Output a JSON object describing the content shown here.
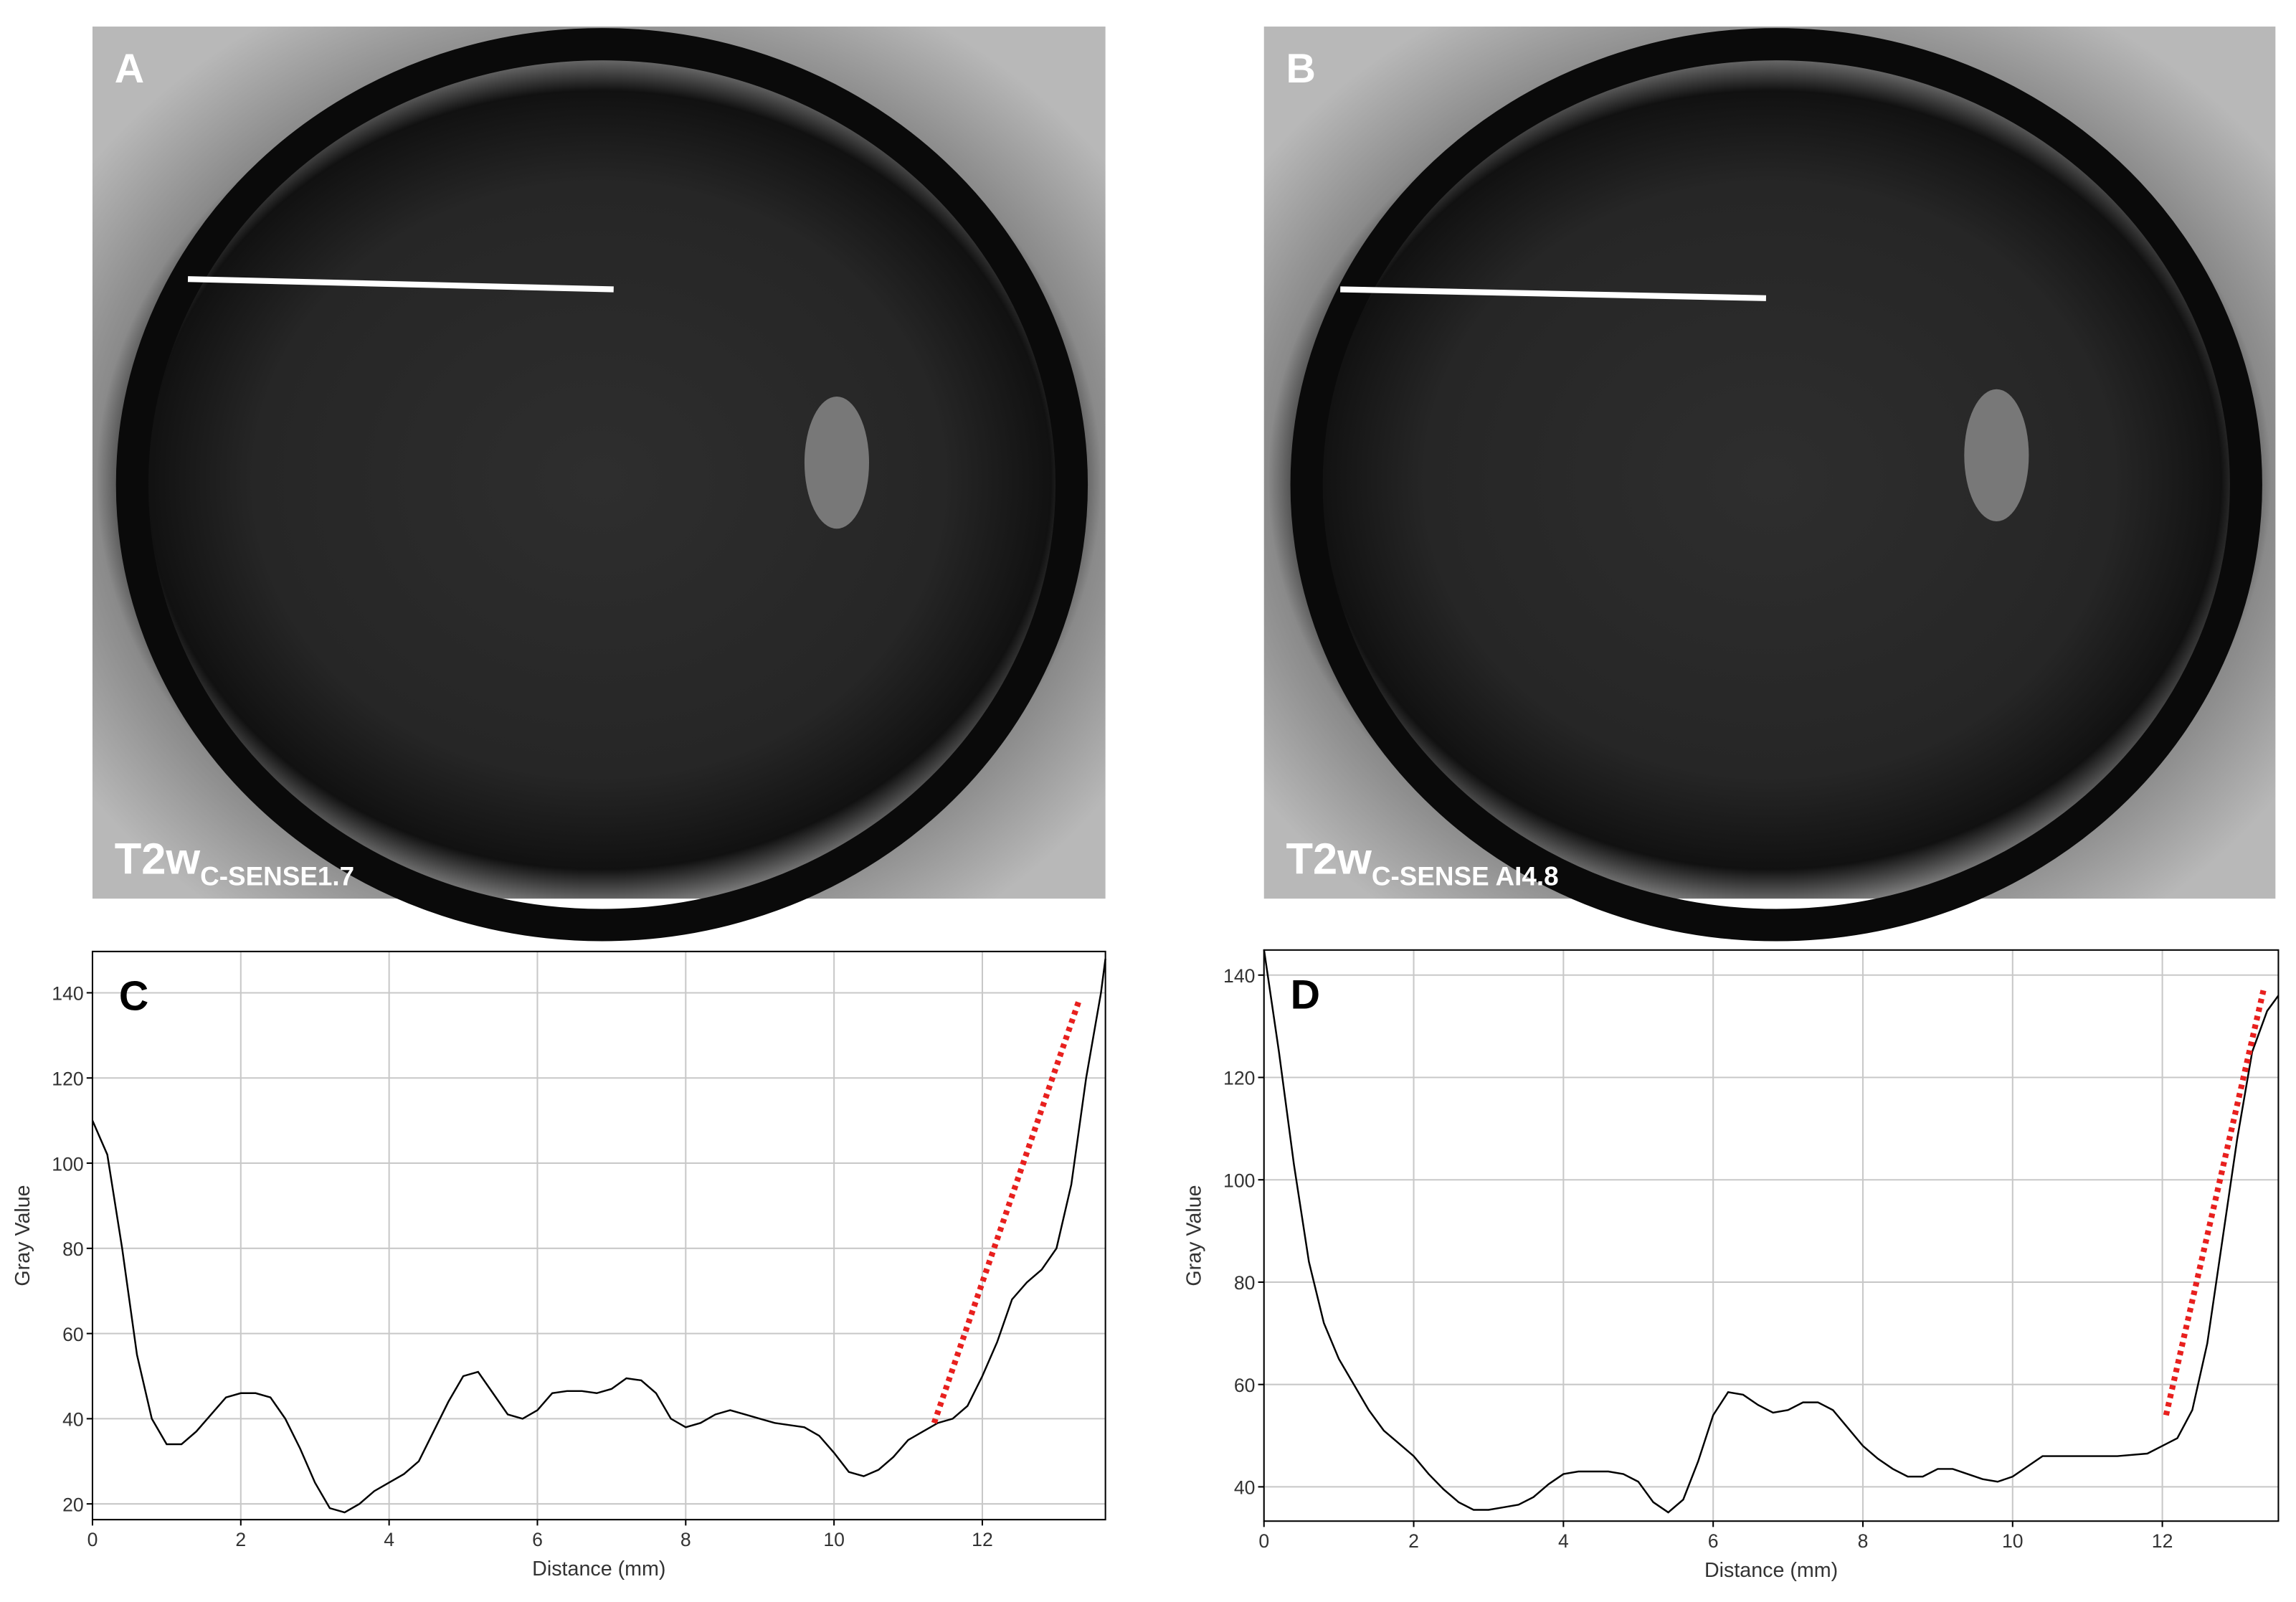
{
  "images": [
    {
      "label": "A",
      "caption": "T2w",
      "caption_sub": "C-SENSE1.7"
    },
    {
      "label": "B",
      "caption": "T2w",
      "caption_sub": "C-SENSE AI4.8"
    }
  ],
  "chart_data": [
    {
      "type": "line",
      "annotation": "C",
      "xlabel": "Distance (mm)",
      "ylabel": "Gray Value",
      "xlim": [
        0,
        13.66
      ],
      "ylim": [
        16.3,
        149.7
      ],
      "xticks": [
        0,
        2,
        4,
        6,
        8,
        10,
        12
      ],
      "yticks": [
        20,
        40,
        60,
        80,
        100,
        120,
        140
      ],
      "grid": true,
      "x": [
        0,
        0.2,
        0.4,
        0.6,
        0.8,
        1.0,
        1.2,
        1.4,
        1.6,
        1.8,
        2.0,
        2.2,
        2.4,
        2.6,
        2.8,
        3.0,
        3.2,
        3.4,
        3.6,
        3.8,
        4.0,
        4.2,
        4.4,
        4.6,
        4.8,
        5.0,
        5.2,
        5.4,
        5.6,
        5.8,
        6.0,
        6.2,
        6.4,
        6.6,
        6.8,
        7.0,
        7.2,
        7.4,
        7.6,
        7.8,
        8.0,
        8.2,
        8.4,
        8.6,
        8.8,
        9.0,
        9.2,
        9.4,
        9.6,
        9.8,
        10.0,
        10.2,
        10.4,
        10.6,
        10.8,
        11.0,
        11.2,
        11.4,
        11.6,
        11.8,
        12.0,
        12.2,
        12.4,
        12.6,
        12.8,
        13.0,
        13.2,
        13.4,
        13.6,
        13.66
      ],
      "series": [
        {
          "color": "#000000",
          "values": [
            110,
            102,
            80,
            55,
            40,
            34,
            34,
            37,
            41,
            45,
            46,
            46,
            45,
            40,
            33,
            25,
            19,
            18,
            20,
            23,
            25,
            27,
            30,
            37,
            44,
            50,
            51,
            46,
            41,
            40,
            42,
            46,
            46.5,
            46.5,
            46,
            47,
            49.5,
            49,
            46,
            40,
            38,
            39,
            41,
            42,
            41,
            40,
            39,
            38.5,
            38,
            36,
            32,
            27.5,
            26.5,
            28,
            31,
            35,
            37,
            39,
            40,
            43,
            50,
            58,
            68,
            72,
            75,
            80,
            95,
            120,
            140,
            148
          ]
        }
      ],
      "trend_line": {
        "x": [
          11.35,
          13.3
        ],
        "values": [
          39,
          138
        ],
        "color": "#e8201e"
      }
    },
    {
      "type": "line",
      "annotation": "D",
      "xlabel": "Distance (mm)",
      "ylabel": "Gray Value",
      "xlim": [
        0,
        13.55
      ],
      "ylim": [
        33.3,
        144.9
      ],
      "xticks": [
        0,
        2,
        4,
        6,
        8,
        10,
        12
      ],
      "yticks": [
        40,
        60,
        80,
        100,
        120,
        140
      ],
      "grid": true,
      "x": [
        0,
        0.2,
        0.4,
        0.6,
        0.8,
        1.0,
        1.2,
        1.4,
        1.6,
        1.8,
        2.0,
        2.2,
        2.4,
        2.6,
        2.8,
        3.0,
        3.2,
        3.4,
        3.6,
        3.8,
        4.0,
        4.2,
        4.4,
        4.6,
        4.8,
        5.0,
        5.2,
        5.4,
        5.6,
        5.8,
        6.0,
        6.2,
        6.4,
        6.6,
        6.8,
        7.0,
        7.2,
        7.4,
        7.6,
        7.8,
        8.0,
        8.2,
        8.4,
        8.6,
        8.8,
        9.0,
        9.2,
        9.4,
        9.6,
        9.8,
        10.0,
        10.2,
        10.4,
        10.6,
        11.0,
        11.4,
        11.8,
        12.0,
        12.2,
        12.4,
        12.6,
        12.8,
        13.0,
        13.2,
        13.4,
        13.55
      ],
      "series": [
        {
          "color": "#000000",
          "values": [
            145,
            125,
            103,
            84,
            72,
            65,
            60,
            55,
            51,
            48.5,
            46,
            42.5,
            39.5,
            37,
            35.5,
            35.5,
            36,
            36.5,
            38,
            40.5,
            42.5,
            43,
            43,
            43,
            42.5,
            41,
            37,
            35,
            37.5,
            45,
            54,
            58.5,
            58,
            56,
            54.5,
            55,
            56.5,
            56.5,
            55,
            51.5,
            48,
            45.5,
            43.5,
            42,
            42,
            43.5,
            43.5,
            42.5,
            41.5,
            41,
            42,
            44,
            46,
            46,
            46,
            46,
            46.5,
            48,
            49.5,
            55,
            68,
            88,
            108,
            125,
            133,
            136
          ]
        }
      ],
      "trend_line": {
        "x": [
          12.05,
          13.35
        ],
        "values": [
          54,
          137
        ],
        "color": "#e8201e"
      }
    }
  ]
}
